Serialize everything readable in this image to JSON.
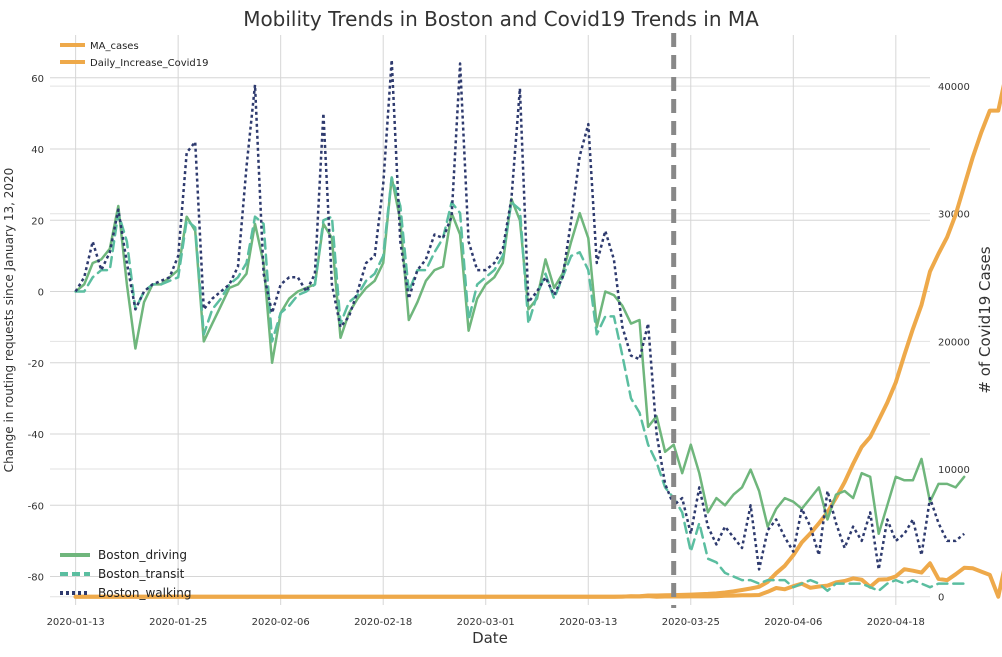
{
  "chart_data": {
    "type": "line",
    "title": "Mobility Trends in Boston and Covid19 Trends in MA",
    "xlabel": "Date",
    "ylabel_left": "Change in routing requests since January 13, 2020",
    "ylabel_right": "# of Covid19 Cases",
    "x_range": [
      "2020-01-10",
      "2020-04-22"
    ],
    "x_tick_labels": [
      "2020-01-13",
      "2020-01-25",
      "2020-02-06",
      "2020-02-18",
      "2020-03-01",
      "2020-03-13",
      "2020-03-25",
      "2020-04-06",
      "2020-04-18"
    ],
    "ylim_left": [
      -88,
      72
    ],
    "y_ticks_left": [
      60,
      40,
      20,
      0,
      -20,
      -40,
      -60,
      -80
    ],
    "ylim_right": [
      -650,
      44000
    ],
    "y_ticks_right": [
      40000,
      30000,
      20000,
      10000,
      0
    ],
    "grid": true,
    "vertical_marker": {
      "date": "2020-03-23",
      "style": "dashed",
      "color": "#888888"
    },
    "legend_right_axis": {
      "placement": "top-left",
      "entries": [
        "MA_cases",
        "Daily_Increase_Covid19"
      ]
    },
    "legend_left_axis": {
      "placement": "bottom-left",
      "entries": [
        "Boston_driving",
        "Boston_transit",
        "Boston_walking"
      ]
    },
    "colors": {
      "MA_cases": "#eea94a",
      "Daily_Increase_Covid19": "#eea94a",
      "Boston_driving": "#6fb67c",
      "Boston_transit": "#5bbea0",
      "Boston_walking": "#2e3a6e"
    },
    "start_date": "2020-01-13",
    "series_left": [
      {
        "name": "Boston_driving",
        "style": "solid",
        "values": [
          0,
          2,
          8,
          9,
          12,
          24,
          2,
          -16,
          -3,
          2,
          2,
          4,
          6,
          21,
          17,
          -14,
          -9,
          -4,
          1,
          2,
          5,
          19,
          8,
          -20,
          -6,
          -2,
          0,
          1,
          2,
          19,
          15,
          -13,
          -6,
          -2,
          1,
          3,
          8,
          32,
          20,
          -8,
          -3,
          3,
          6,
          7,
          22,
          16,
          -11,
          -2,
          2,
          4,
          8,
          26,
          20,
          -5,
          -2,
          9,
          1,
          5,
          14,
          22,
          15,
          -10,
          0,
          -1,
          -4,
          -9,
          -8,
          -38,
          -35,
          -45,
          -43,
          -51,
          -43,
          -51,
          -62,
          -58,
          -60,
          -57,
          -55,
          -50,
          -56,
          -66,
          -61,
          -58,
          -59,
          -61,
          -58,
          -55,
          -64,
          -57,
          -56,
          -58,
          -51,
          -52,
          -68,
          -60,
          -52,
          -53,
          -53,
          -47,
          -59,
          -54,
          -54,
          -55,
          -52
        ]
      },
      {
        "name": "Boston_transit",
        "style": "dashed",
        "values": [
          0,
          0,
          4,
          6,
          6,
          22,
          14,
          -5,
          0,
          2,
          2,
          3,
          4,
          20,
          18,
          -12,
          -5,
          -2,
          2,
          4,
          8,
          21,
          19,
          -14,
          -6,
          -4,
          -1,
          0,
          2,
          20,
          21,
          -9,
          -3,
          -1,
          3,
          5,
          10,
          32,
          24,
          0,
          6,
          6,
          11,
          15,
          25,
          22,
          -8,
          2,
          4,
          6,
          10,
          25,
          23,
          -9,
          -1,
          5,
          -2,
          4,
          10,
          11,
          6,
          -12,
          -7,
          -7,
          -18,
          -30,
          -34,
          -43,
          -48,
          -55,
          -58,
          -62,
          -73,
          -65,
          -75,
          -76,
          -79,
          -80,
          -81,
          -81,
          -82,
          -81,
          -81,
          -81,
          -83,
          -82,
          -81,
          -82,
          -84,
          -82,
          -82,
          -82,
          -82,
          -83,
          -84,
          -82,
          -81,
          -82,
          -81,
          -82,
          -83,
          -82,
          -82,
          -82,
          -82
        ]
      },
      {
        "name": "Boston_walking",
        "style": "dotted",
        "values": [
          0,
          4,
          14,
          6,
          11,
          23,
          8,
          -5,
          0,
          2,
          3,
          4,
          10,
          39,
          42,
          -5,
          -2,
          0,
          2,
          7,
          35,
          58,
          5,
          -6,
          2,
          4,
          4,
          0,
          5,
          50,
          2,
          -10,
          -7,
          0,
          8,
          10,
          30,
          65,
          14,
          -2,
          6,
          9,
          16,
          15,
          21,
          64,
          14,
          6,
          6,
          8,
          12,
          26,
          57,
          -3,
          0,
          4,
          -1,
          4,
          20,
          38,
          47,
          8,
          17,
          9,
          -10,
          -18,
          -19,
          -9,
          -40,
          -54,
          -60,
          -58,
          -68,
          -55,
          -66,
          -71,
          -66,
          -69,
          -72,
          -60,
          -78,
          -67,
          -64,
          -69,
          -73,
          -61,
          -66,
          -74,
          -56,
          -65,
          -72,
          -66,
          -70,
          -62,
          -78,
          -64,
          -70,
          -68,
          -64,
          -74,
          -58,
          -65,
          -70,
          -70,
          -68
        ]
      }
    ],
    "series_right": [
      {
        "name": "MA_cases",
        "style": "solid",
        "values": [
          0,
          0,
          0,
          0,
          0,
          0,
          0,
          0,
          0,
          0,
          0,
          0,
          0,
          0,
          0,
          0,
          0,
          0,
          0,
          0,
          0,
          0,
          0,
          0,
          0,
          0,
          1,
          1,
          1,
          1,
          1,
          1,
          1,
          1,
          1,
          1,
          1,
          1,
          1,
          1,
          1,
          1,
          1,
          1,
          1,
          1,
          1,
          1,
          1,
          1,
          1,
          1,
          1,
          1,
          1,
          1,
          1,
          1,
          1,
          1,
          1,
          1,
          2,
          2,
          8,
          28,
          41,
          92,
          95,
          108,
          123,
          138,
          164,
          197,
          218,
          256,
          328,
          413,
          525,
          646,
          777,
          1159,
          1838,
          2417,
          3240,
          4257,
          4955,
          5752,
          6620,
          7738,
          8966,
          10402,
          11736,
          12500,
          13837,
          15202,
          16790,
          18941,
          20974,
          22860,
          25475,
          26867,
          28163,
          29918,
          32181,
          34402,
          36372,
          38077,
          38077,
          41199,
          42944
        ]
      },
      {
        "name": "Daily_Increase_Covid19",
        "style": "solid",
        "values": [
          0,
          0,
          0,
          0,
          0,
          0,
          0,
          0,
          0,
          0,
          0,
          0,
          0,
          0,
          0,
          0,
          0,
          0,
          0,
          0,
          0,
          0,
          0,
          0,
          0,
          0,
          0,
          0,
          0,
          0,
          0,
          0,
          0,
          0,
          0,
          0,
          0,
          0,
          0,
          0,
          0,
          0,
          0,
          0,
          0,
          0,
          0,
          0,
          0,
          0,
          0,
          0,
          0,
          0,
          0,
          0,
          0,
          0,
          0,
          0,
          0,
          0,
          0,
          0,
          6,
          20,
          13,
          51,
          3,
          13,
          15,
          15,
          26,
          33,
          21,
          38,
          72,
          85,
          112,
          121,
          131,
          382,
          679,
          579,
          823,
          1017,
          698,
          797,
          868,
          1118,
          1228,
          1436,
          1334,
          764,
          1337,
          1365,
          1588,
          2151,
          2033,
          1886,
          2615,
          1392,
          1296,
          1755,
          2263,
          2221,
          1970,
          1705,
          0,
          3122,
          1745
        ]
      }
    ]
  }
}
